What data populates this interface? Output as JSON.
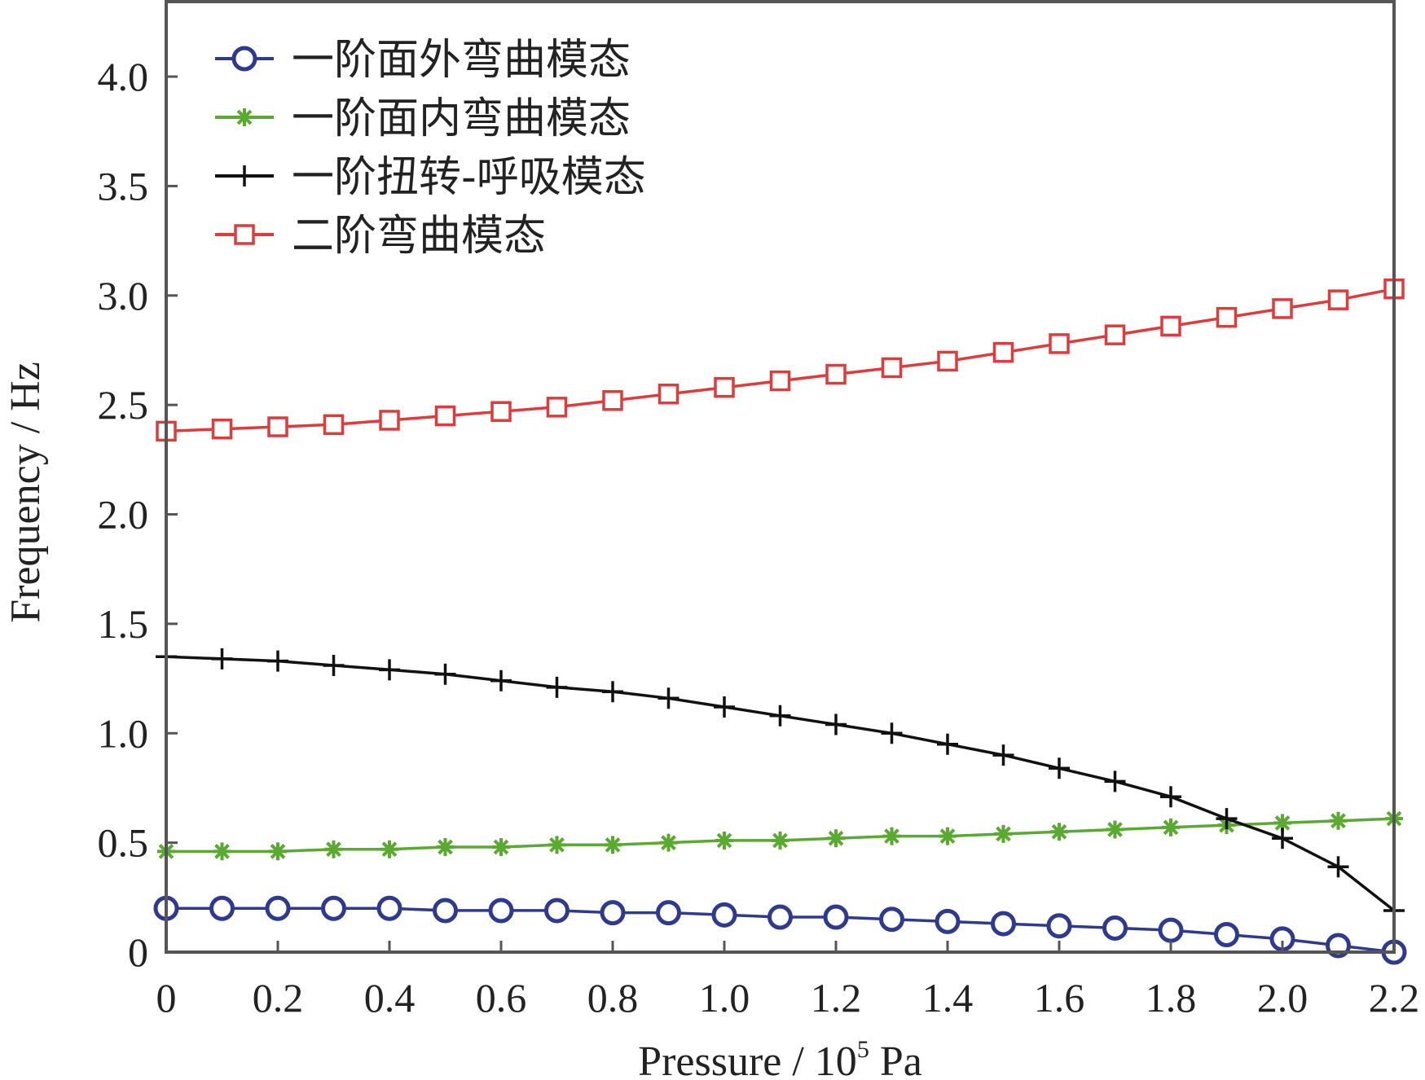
{
  "chart_data": {
    "type": "line",
    "xlabel": "Pressure / 10",
    "xlabel_sup": "5",
    "xlabel_unit": " Pa",
    "ylabel": "Frequency / Hz",
    "xlim": [
      0,
      2.2
    ],
    "ylim": [
      0,
      4.35
    ],
    "xticks": [
      0,
      0.2,
      0.4,
      0.6,
      0.8,
      1.0,
      1.2,
      1.4,
      1.6,
      1.8,
      2.0,
      2.2
    ],
    "xtick_labels": [
      "0",
      "0.2",
      "0.4",
      "0.6",
      "0.8",
      "1.0",
      "1.2",
      "1.4",
      "1.6",
      "1.8",
      "2.0",
      "2.2"
    ],
    "yticks": [
      0,
      0.5,
      1.0,
      1.5,
      2.0,
      2.5,
      3.0,
      3.5,
      4.0
    ],
    "ytick_labels": [
      "0",
      "0.5",
      "1.0",
      "1.5",
      "2.0",
      "2.5",
      "3.0",
      "3.5",
      "4.0"
    ],
    "grid": false,
    "legend_position": "top-left",
    "x": [
      0,
      0.1,
      0.2,
      0.3,
      0.4,
      0.5,
      0.6,
      0.7,
      0.8,
      0.9,
      1.0,
      1.1,
      1.2,
      1.3,
      1.4,
      1.5,
      1.6,
      1.7,
      1.8,
      1.9,
      2.0,
      2.1,
      2.2
    ],
    "series": [
      {
        "name": "一阶面外弯曲模态",
        "color": "#2e3a8f",
        "marker": "circle",
        "values": [
          0.2,
          0.2,
          0.2,
          0.2,
          0.2,
          0.19,
          0.19,
          0.19,
          0.18,
          0.18,
          0.17,
          0.16,
          0.16,
          0.15,
          0.14,
          0.13,
          0.12,
          0.11,
          0.1,
          0.08,
          0.06,
          0.03,
          0.0
        ]
      },
      {
        "name": "一阶面内弯曲模态",
        "color": "#5aaa32",
        "marker": "asterisk",
        "values": [
          0.46,
          0.46,
          0.46,
          0.47,
          0.47,
          0.48,
          0.48,
          0.49,
          0.49,
          0.5,
          0.51,
          0.51,
          0.52,
          0.53,
          0.53,
          0.54,
          0.55,
          0.56,
          0.57,
          0.58,
          0.59,
          0.6,
          0.61
        ]
      },
      {
        "name": "一阶扭转-呼吸模态",
        "color": "#111111",
        "marker": "plus",
        "values": [
          1.35,
          1.34,
          1.33,
          1.31,
          1.29,
          1.27,
          1.24,
          1.21,
          1.19,
          1.16,
          1.12,
          1.08,
          1.04,
          1.0,
          0.95,
          0.9,
          0.84,
          0.78,
          0.71,
          0.61,
          0.52,
          0.39,
          0.19
        ]
      },
      {
        "name": "二阶弯曲模态",
        "color": "#e03a3a",
        "marker": "square",
        "values": [
          2.38,
          2.39,
          2.4,
          2.41,
          2.43,
          2.45,
          2.47,
          2.49,
          2.52,
          2.55,
          2.58,
          2.61,
          2.64,
          2.67,
          2.7,
          2.74,
          2.78,
          2.82,
          2.86,
          2.9,
          2.94,
          2.98,
          3.03
        ]
      }
    ]
  }
}
